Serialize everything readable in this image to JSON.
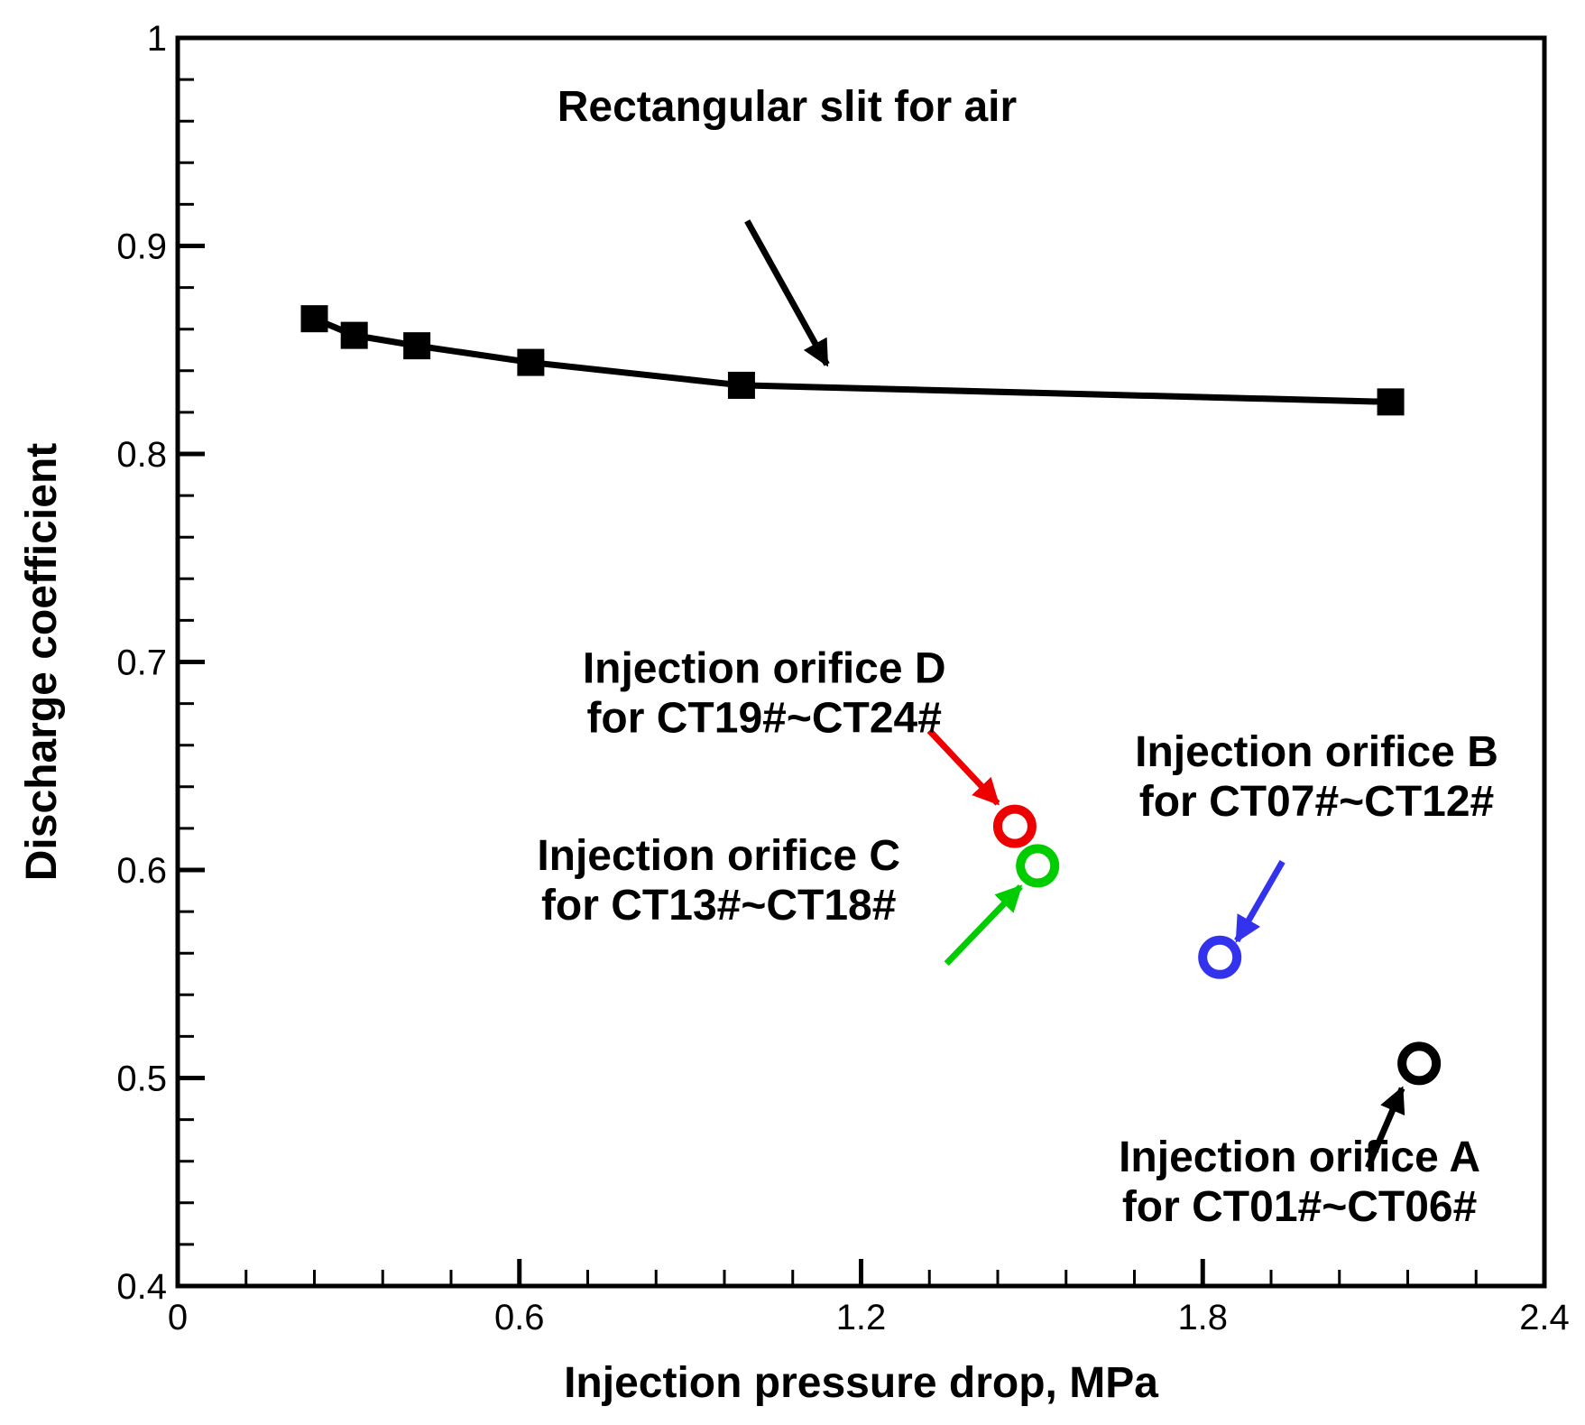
{
  "chart_data": {
    "type": "scatter",
    "title": "",
    "xlabel": "Injection pressure drop, MPa",
    "ylabel": "Discharge coefficient",
    "xlim": [
      0,
      2.4
    ],
    "ylim": [
      0.4,
      1.0
    ],
    "x_major_ticks": [
      0,
      0.6,
      1.2,
      1.8,
      2.4
    ],
    "x_tick_labels": [
      "0",
      "0.6",
      "1.2",
      "1.8",
      "2.4"
    ],
    "x_minor_step": 0.12,
    "y_major_ticks": [
      0.4,
      0.5,
      0.6,
      0.7,
      0.8,
      0.9,
      1.0
    ],
    "y_tick_labels": [
      "0.4",
      "0.5",
      "0.6",
      "0.7",
      "0.8",
      "0.9",
      "1"
    ],
    "y_minor_step": 0.02,
    "grid": false,
    "series": [
      {
        "name": "Rectangular slit for air",
        "kind": "line-square-markers",
        "color": "#000000",
        "x": [
          0.24,
          0.31,
          0.42,
          0.62,
          0.99,
          2.13
        ],
        "y": [
          0.865,
          0.857,
          0.852,
          0.844,
          0.833,
          0.825
        ],
        "label_lines": [
          "Rectangular slit for air"
        ],
        "arrow_from": [
          1.0,
          0.912
        ],
        "arrow_to": [
          1.14,
          0.843
        ]
      },
      {
        "name": "Injection orifice D",
        "kind": "open-circle",
        "color": "#ee0000",
        "x": [
          1.47
        ],
        "y": [
          0.621
        ],
        "label_lines": [
          "Injection orifice D",
          "for CT19#~CT24#"
        ],
        "arrow_from": [
          1.32,
          0.667
        ],
        "arrow_to": [
          1.44,
          0.632
        ]
      },
      {
        "name": "Injection orifice C",
        "kind": "open-circle",
        "color": "#00cc00",
        "x": [
          1.51
        ],
        "y": [
          0.602
        ],
        "label_lines": [
          "Injection orifice C",
          "for CT13#~CT18#"
        ],
        "arrow_from": [
          1.35,
          0.555
        ],
        "arrow_to": [
          1.48,
          0.592
        ]
      },
      {
        "name": "Injection orifice B",
        "kind": "open-circle",
        "color": "#3333ee",
        "x": [
          1.83
        ],
        "y": [
          0.558
        ],
        "label_lines": [
          "Injection orifice B",
          "for CT07#~CT12#"
        ],
        "arrow_from": [
          1.94,
          0.604
        ],
        "arrow_to": [
          1.86,
          0.566
        ]
      },
      {
        "name": "Injection orifice A",
        "kind": "open-circle",
        "color": "#000000",
        "x": [
          2.18
        ],
        "y": [
          0.507
        ],
        "label_lines": [
          "Injection orifice A",
          "for CT01#~CT06#"
        ],
        "arrow_from": [
          2.09,
          0.457
        ],
        "arrow_to": [
          2.15,
          0.495
        ]
      }
    ],
    "annotation_positions": [
      {
        "series": 0,
        "anchor": "middle",
        "x": 1.07,
        "y": 0.96
      },
      {
        "series": 1,
        "anchor": "middle",
        "x": 1.03,
        "y": 0.69
      },
      {
        "series": 2,
        "anchor": "middle",
        "x": 0.95,
        "y": 0.6
      },
      {
        "series": 3,
        "anchor": "middle",
        "x": 2.0,
        "y": 0.65
      },
      {
        "series": 4,
        "anchor": "middle",
        "x": 1.97,
        "y": 0.455
      }
    ]
  }
}
